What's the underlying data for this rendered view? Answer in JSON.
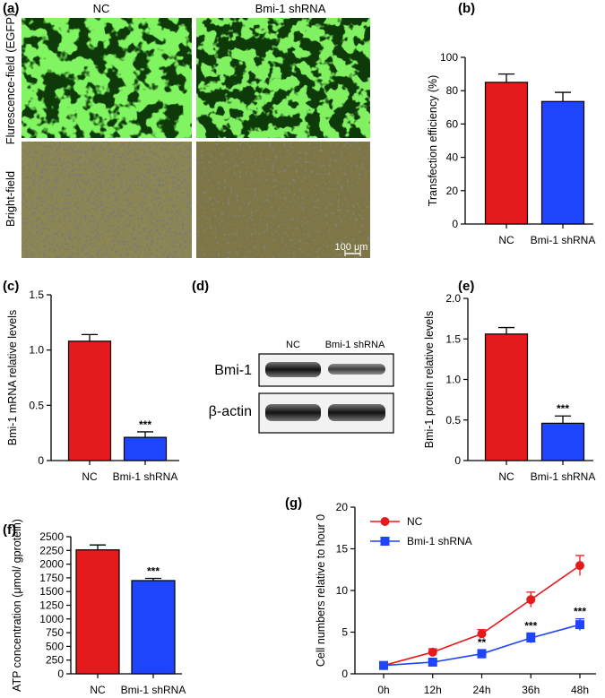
{
  "colors": {
    "nc": "#e41a1c",
    "shrna": "#1f45fc",
    "fluor_bg": "#0d3a08",
    "fluor_fg": "#3fe51e",
    "bright_bg": "#8c8752",
    "bright_dot": "#3a3a2e"
  },
  "panel_a": {
    "label": "(a)",
    "col_nc": "NC",
    "col_shrna": "Bmi-1 shRNA",
    "row_fluor": "Flurescence-field (EGFP)",
    "row_bright": "Bright-field",
    "scale_bar": "100 μm"
  },
  "panel_d": {
    "label": "(d)",
    "col_nc": "NC",
    "col_shrna": "Bmi-1 shRNA",
    "row1": "Bmi-1",
    "row2": "β-actin"
  },
  "chart_data": [
    {
      "id": "b",
      "label": "(b)",
      "type": "bar",
      "categories": [
        "NC",
        "Bmi-1 shRNA"
      ],
      "values": [
        85,
        73.5
      ],
      "errors": [
        5,
        5.5
      ],
      "ylabel": "Transfection efficiency (%)",
      "ylim": [
        0,
        100
      ],
      "yticks": [
        0,
        20,
        40,
        60,
        80,
        100
      ],
      "ytick_labels": [
        "0",
        "20",
        "40",
        "60",
        "80",
        "100"
      ],
      "significance": [
        "",
        ""
      ]
    },
    {
      "id": "c",
      "label": "(c)",
      "type": "bar",
      "categories": [
        "NC",
        "Bmi-1 shRNA"
      ],
      "values": [
        1.08,
        0.21
      ],
      "errors": [
        0.06,
        0.05
      ],
      "ylabel": "Bmi-1 mRNA relative levels",
      "ylim": [
        0,
        1.5
      ],
      "yticks": [
        0,
        0.5,
        1.0,
        1.5
      ],
      "ytick_labels": [
        "0",
        "0.5",
        "1.0",
        "1.5"
      ],
      "significance": [
        "",
        "***"
      ]
    },
    {
      "id": "e",
      "label": "(e)",
      "type": "bar",
      "categories": [
        "NC",
        "Bmi-1 shRNA"
      ],
      "values": [
        1.56,
        0.46
      ],
      "errors": [
        0.08,
        0.09
      ],
      "ylabel": "Bmi-1 protein relative levels",
      "ylim": [
        0,
        2.0
      ],
      "yticks": [
        0,
        0.5,
        1.0,
        1.5,
        2.0
      ],
      "ytick_labels": [
        "0",
        "0.5",
        "1.0",
        "1.5",
        "2.0"
      ],
      "significance": [
        "",
        "***"
      ]
    },
    {
      "id": "f",
      "label": "(f)",
      "type": "bar",
      "categories": [
        "NC",
        "Bmi-1 shRNA"
      ],
      "values": [
        2260,
        1700
      ],
      "errors": [
        90,
        40
      ],
      "ylabel": "ATP concentration (μmol/ gprotein)",
      "ylim": [
        0,
        2500
      ],
      "yticks": [
        0,
        250,
        500,
        750,
        1000,
        1250,
        1500,
        1750,
        2000,
        2250,
        2500
      ],
      "ytick_labels": [
        "0",
        "250",
        "500",
        "750",
        "1000",
        "1250",
        "1500",
        "1750",
        "2000",
        "2250",
        "2500"
      ],
      "significance": [
        "",
        "***"
      ]
    },
    {
      "id": "g",
      "label": "(g)",
      "type": "line",
      "x": [
        "0h",
        "12h",
        "24h",
        "36h",
        "48h"
      ],
      "ylabel": "Cell numbers relative to hour 0",
      "ylim": [
        0,
        20
      ],
      "yticks": [
        0,
        5,
        10,
        15,
        20
      ],
      "ytick_labels": [
        "0",
        "5",
        "10",
        "15",
        "20"
      ],
      "legend_position": "top-left",
      "series": [
        {
          "name": "NC",
          "values": [
            1.0,
            2.6,
            4.8,
            8.9,
            13.0
          ],
          "errors": [
            0.1,
            0.4,
            0.5,
            0.9,
            1.2
          ],
          "marker": "circle",
          "significance": [
            "",
            "",
            "",
            "",
            ""
          ]
        },
        {
          "name": "Bmi-1 shRNA",
          "values": [
            1.0,
            1.4,
            2.4,
            4.3,
            5.9
          ],
          "errors": [
            0.1,
            0.2,
            0.5,
            0.6,
            0.7
          ],
          "marker": "square",
          "significance": [
            "",
            "",
            "**",
            "***",
            "***"
          ]
        }
      ]
    }
  ]
}
